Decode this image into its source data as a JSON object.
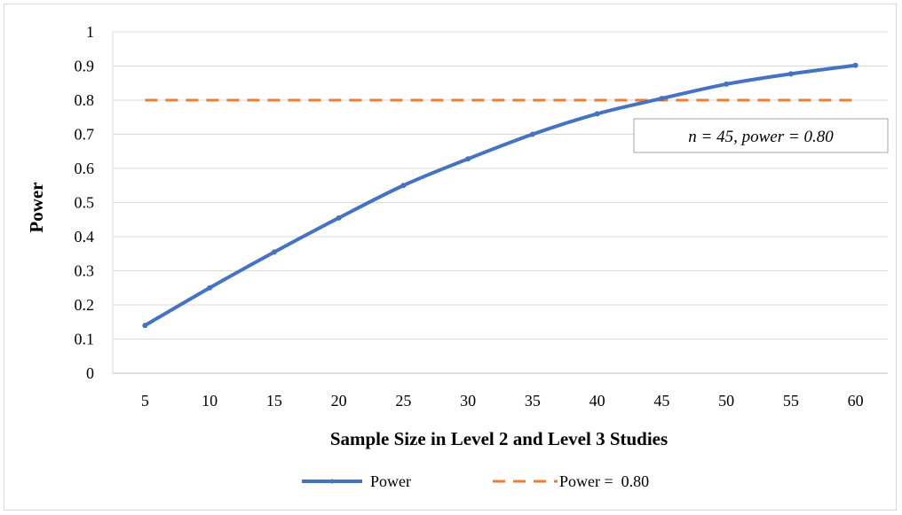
{
  "chart_data": {
    "type": "line",
    "title": "",
    "xlabel": "Sample Size in Level 2 and Level 3 Studies",
    "ylabel": "Power",
    "x": [
      5,
      10,
      15,
      20,
      25,
      30,
      35,
      40,
      45,
      50,
      55,
      60
    ],
    "ylim": [
      0,
      1
    ],
    "yticks": [
      "0",
      "0.1",
      "0.2",
      "0.3",
      "0.4",
      "0.5",
      "0.6",
      "0.7",
      "0.8",
      "0.9",
      "1"
    ],
    "grid": true,
    "legend_position": "bottom",
    "series": [
      {
        "name": "Power",
        "style": "solid-with-markers",
        "color": "#4472c4",
        "values": [
          0.14,
          0.25,
          0.355,
          0.455,
          0.55,
          0.628,
          0.7,
          0.76,
          0.805,
          0.847,
          0.877,
          0.902
        ]
      },
      {
        "name": "Power =  0.80",
        "style": "dashed",
        "color": "#ed7d31",
        "values": [
          0.8,
          0.8,
          0.8,
          0.8,
          0.8,
          0.8,
          0.8,
          0.8,
          0.8,
          0.8,
          0.8,
          0.8
        ]
      }
    ],
    "annotation": {
      "text": "n = 45, power = 0.80"
    }
  }
}
